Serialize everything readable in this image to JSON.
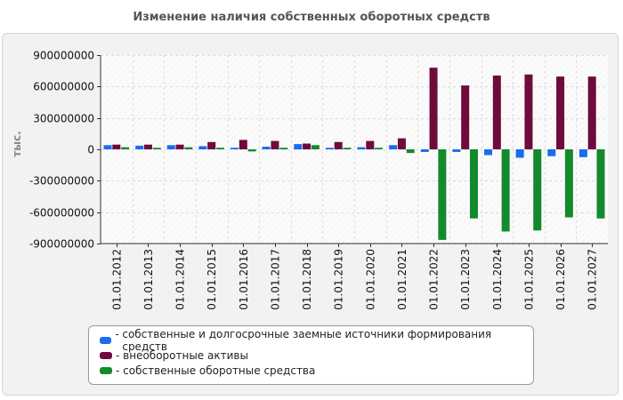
{
  "chart_data": {
    "type": "bar",
    "title": "Изменение наличия собственных оборотных средств",
    "xlabel": "",
    "ylabel": "тыс.",
    "ylim": [
      -900000000,
      900000000
    ],
    "yticks": [
      "900000000",
      "600000000",
      "300000000",
      "0",
      "-300000000",
      "-600000000",
      "-900000000"
    ],
    "ytick_values": [
      900000000,
      600000000,
      300000000,
      0,
      -300000000,
      -600000000,
      -900000000
    ],
    "grid": true,
    "legend_position": "bottom",
    "categories": [
      "01.01.2012",
      "01.01.2013",
      "01.01.2014",
      "01.01.2015",
      "01.01.2016",
      "01.01.2017",
      "01.01.2018",
      "01.01.2019",
      "01.01.2020",
      "01.01.2021",
      "01.01.2022",
      "01.01.2023",
      "01.01.2024",
      "01.01.2025",
      "01.01.2026",
      "01.01.2027"
    ],
    "series": [
      {
        "name": "собственные и долгосрочные заемные источники формирования средств",
        "color": "#1a6cf0",
        "values": [
          40000000,
          35000000,
          40000000,
          30000000,
          15000000,
          25000000,
          50000000,
          15000000,
          20000000,
          40000000,
          -25000000,
          -25000000,
          -55000000,
          -80000000,
          -65000000,
          -75000000
        ]
      },
      {
        "name": "внеоборотные активы",
        "color": "#6e0a3c",
        "values": [
          45000000,
          45000000,
          45000000,
          70000000,
          90000000,
          80000000,
          55000000,
          70000000,
          80000000,
          105000000,
          780000000,
          610000000,
          705000000,
          715000000,
          695000000,
          695000000
        ]
      },
      {
        "name": "собственные оборотные средства",
        "color": "#138a2c",
        "values": [
          20000000,
          15000000,
          20000000,
          15000000,
          -20000000,
          15000000,
          40000000,
          15000000,
          15000000,
          -35000000,
          -865000000,
          -660000000,
          -785000000,
          -775000000,
          -650000000,
          -660000000
        ]
      }
    ]
  }
}
